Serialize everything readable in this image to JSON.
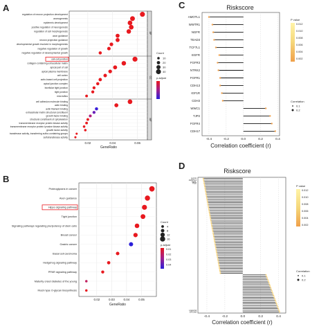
{
  "panels": {
    "A": {
      "letter": "A",
      "xlabel": "GeneRatio",
      "xticks": [
        0.02,
        0.04,
        0.06
      ],
      "size_legend": {
        "title": "Count",
        "values": [
          10,
          20,
          30,
          40
        ]
      },
      "color_legend": {
        "title": "p.adjust"
      },
      "facets": [
        "BP",
        "CC",
        "MF"
      ],
      "highlight_term": "cell-cell junction",
      "terms": [
        {
          "label": "regulation of neuron projection development",
          "facet": "BP",
          "x": 0.064,
          "count": 40,
          "color": "#e8191f"
        },
        {
          "label": "axonogenesis",
          "facet": "BP",
          "x": 0.056,
          "count": 38,
          "color": "#e8191f"
        },
        {
          "label": "epidermis development",
          "facet": "BP",
          "x": 0.054,
          "count": 36,
          "color": "#e8191f"
        },
        {
          "label": "positive regulation of neurogenesis",
          "facet": "BP",
          "x": 0.055,
          "count": 36,
          "color": "#e8191f"
        },
        {
          "label": "regulation of cell morphogenesis",
          "facet": "BP",
          "x": 0.053,
          "count": 34,
          "color": "#e8191f"
        },
        {
          "label": "axon guidance",
          "facet": "BP",
          "x": 0.044,
          "count": 28,
          "color": "#e8191f"
        },
        {
          "label": "neuron projection guidance",
          "facet": "BP",
          "x": 0.044,
          "count": 28,
          "color": "#e8191f"
        },
        {
          "label": "developmental growth involved in morphogenesis",
          "facet": "BP",
          "x": 0.039,
          "count": 24,
          "color": "#e8191f"
        },
        {
          "label": "negative regulation of growth",
          "facet": "BP",
          "x": 0.037,
          "count": 22,
          "color": "#e8191f"
        },
        {
          "label": "negative regulation of developmental growth",
          "facet": "BP",
          "x": 0.03,
          "count": 18,
          "color": "#e8191f"
        },
        {
          "label": "cell-cell junction",
          "facet": "CC",
          "x": 0.058,
          "count": 40,
          "color": "#e8191f"
        },
        {
          "label": "collagen-containing extracellular matrix",
          "facet": "CC",
          "x": 0.049,
          "count": 34,
          "color": "#e8191f"
        },
        {
          "label": "apical part of cell",
          "facet": "CC",
          "x": 0.042,
          "count": 28,
          "color": "#e8191f"
        },
        {
          "label": "apical plasma membrane",
          "facet": "CC",
          "x": 0.038,
          "count": 24,
          "color": "#e8191f"
        },
        {
          "label": "cell cortex",
          "facet": "CC",
          "x": 0.034,
          "count": 22,
          "color": "#e8191f"
        },
        {
          "label": "actin-based cell projection",
          "facet": "CC",
          "x": 0.03,
          "count": 20,
          "color": "#e8191f"
        },
        {
          "label": "apical junction complex",
          "facet": "CC",
          "x": 0.028,
          "count": 18,
          "color": "#e8191f"
        },
        {
          "label": "bicellular tight junction",
          "facet": "CC",
          "x": 0.025,
          "count": 16,
          "color": "#e8191f"
        },
        {
          "label": "tight junction",
          "facet": "CC",
          "x": 0.024,
          "count": 16,
          "color": "#e8191f"
        },
        {
          "label": "microvillus",
          "facet": "CC",
          "x": 0.019,
          "count": 12,
          "color": "#e8191f"
        },
        {
          "label": "cell adhesion molecule binding",
          "facet": "MF",
          "x": 0.054,
          "count": 36,
          "color": "#e8191f"
        },
        {
          "label": "actin binding",
          "facet": "MF",
          "x": 0.043,
          "count": 28,
          "color": "#e8191f"
        },
        {
          "label": "actin filament binding",
          "facet": "MF",
          "x": 0.027,
          "count": 18,
          "color": "#3b1fd9"
        },
        {
          "label": "extracellular matrix structural constituent",
          "facet": "MF",
          "x": 0.025,
          "count": 16,
          "color": "#6a1fb8"
        },
        {
          "label": "growth factor binding",
          "facet": "MF",
          "x": 0.022,
          "count": 14,
          "color": "#b01f7e"
        },
        {
          "label": "structural constituent of cytoskeleton",
          "facet": "MF",
          "x": 0.02,
          "count": 12,
          "color": "#e8191f"
        },
        {
          "label": "transmembrane receptor protein kinase activity",
          "facet": "MF",
          "x": 0.019,
          "count": 12,
          "color": "#e8191f"
        },
        {
          "label": "transmembrane receptor protein tyrosine kinase activity",
          "facet": "MF",
          "x": 0.017,
          "count": 10,
          "color": "#e8191f"
        },
        {
          "label": "growth factor activity",
          "facet": "MF",
          "x": 0.018,
          "count": 10,
          "color": "#e8191f"
        },
        {
          "label": "transferase activity, transferring sulfur-containing groups",
          "facet": "MF",
          "x": 0.011,
          "count": 6,
          "color": "#e8191f"
        },
        {
          "label": "sulfotransferase activity",
          "facet": "MF",
          "x": 0.01,
          "count": 6,
          "color": "#e8191f"
        }
      ]
    },
    "B": {
      "letter": "B",
      "xlabel": "GeneRatio",
      "xticks": [
        0.02,
        0.03,
        0.04,
        0.05
      ],
      "size_legend": {
        "title": "Count",
        "values": [
          4,
          8,
          12,
          16
        ]
      },
      "color_legend": {
        "title": "p.adjust",
        "ticks": [
          "0.01",
          "0.02",
          "0.03",
          "0.04"
        ]
      },
      "highlight_term": "Hippo signaling pathway",
      "terms": [
        {
          "label": "Proteoglycans in cancer",
          "x": 0.057,
          "count": 17,
          "color": "#e8191f"
        },
        {
          "label": "Axon guidance",
          "x": 0.054,
          "count": 16,
          "color": "#e8191f"
        },
        {
          "label": "Hippo signaling pathway",
          "x": 0.052,
          "count": 15,
          "color": "#e8191f"
        },
        {
          "label": "Tight junction",
          "x": 0.051,
          "count": 14,
          "color": "#e8191f"
        },
        {
          "label": "Signaling pathways regulating pluripotency of stem cells",
          "x": 0.047,
          "count": 13,
          "color": "#e8191f"
        },
        {
          "label": "Breast cancer",
          "x": 0.046,
          "count": 12,
          "color": "#e8191f"
        },
        {
          "label": "Gastric cancer",
          "x": 0.043,
          "count": 11,
          "color": "#2b1fd9"
        },
        {
          "label": "Basal cell carcinoma",
          "x": 0.034,
          "count": 8,
          "color": "#e8191f"
        },
        {
          "label": "Hedgehog signaling pathway",
          "x": 0.028,
          "count": 7,
          "color": "#e8191f"
        },
        {
          "label": "PPAR signaling pathway",
          "x": 0.024,
          "count": 6,
          "color": "#e8191f"
        },
        {
          "label": "Maturity onset diabetes of the young",
          "x": 0.013,
          "count": 3,
          "color": "#c01f5e"
        },
        {
          "label": "Mucin type O-glycan biosynthesis",
          "x": 0.013,
          "count": 3,
          "color": "#e8191f"
        }
      ]
    },
    "C": {
      "letter": "C",
      "title": "Riskscore",
      "xlabel": "Correlation coefficient (r)",
      "xticks": [
        -0.4,
        -0.2,
        0.0,
        0.2,
        0.4
      ],
      "pvalue_legend": {
        "title": "P value",
        "ticks": [
          "0.012",
          "0.010",
          "0.008",
          "0.006",
          "0.004",
          "0.002"
        ]
      },
      "corr_legend": {
        "title": "Correlation",
        "values": [
          "0.1",
          "0.2"
        ]
      },
      "genes": [
        {
          "label": "AMOTL1",
          "r": -0.4
        },
        {
          "label": "WWTR1",
          "r": -0.36
        },
        {
          "label": "NGFR",
          "r": -0.35
        },
        {
          "label": "TEAD3",
          "r": -0.34
        },
        {
          "label": "TCF7L1",
          "r": -0.32
        },
        {
          "label": "EGFR",
          "r": -0.28
        },
        {
          "label": "FGFR3",
          "r": -0.3
        },
        {
          "label": "NTRK2",
          "r": -0.29
        },
        {
          "label": "FGFR1",
          "r": -0.27
        },
        {
          "label": "CDH13",
          "r": -0.27
        },
        {
          "label": "IGF1R",
          "r": -0.25
        },
        {
          "label": "CDH3",
          "r": -0.24
        },
        {
          "label": "WWC1",
          "r": 0.26
        },
        {
          "label": "TJP2",
          "r": 0.31
        },
        {
          "label": "FGFR4",
          "r": 0.33
        },
        {
          "label": "CDH17",
          "r": 0.37
        }
      ]
    },
    "D": {
      "letter": "D",
      "title": "Riskscore",
      "xlabel": "Correlation coefficient (r)",
      "xticks": [
        -0.4,
        -0.2,
        0.0,
        0.2,
        0.4
      ],
      "pvalue_legend": {
        "title": "P value",
        "ticks": [
          "0.012",
          "0.010",
          "0.008",
          "0.006",
          "0.004",
          "0.002"
        ]
      },
      "corr_legend": {
        "title": "Correlation",
        "values": [
          "0.1",
          "0.2"
        ]
      },
      "top_labels": [
        "NGFR",
        "AMOTL1",
        "NEFL",
        "PDE"
      ],
      "bottom_labels": [
        "LGALS4",
        "EPCAM"
      ],
      "n_negative": 60,
      "n_positive": 24,
      "neg_r_range": [
        -0.44,
        -0.25
      ],
      "pos_r_range": [
        0.26,
        0.41
      ]
    }
  }
}
